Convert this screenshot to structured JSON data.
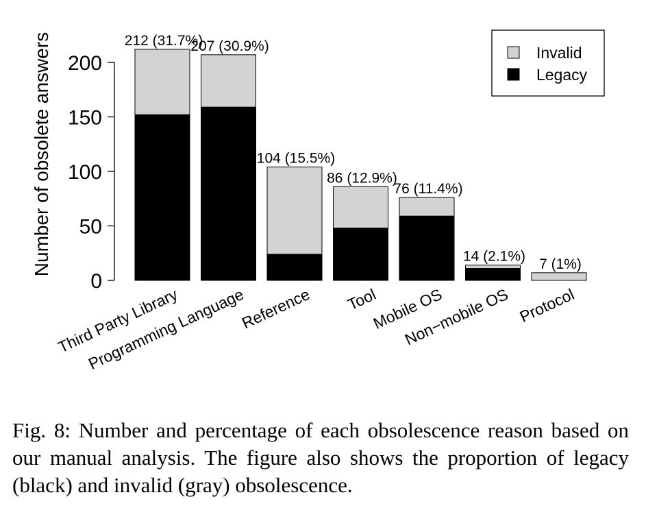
{
  "chart_data": {
    "type": "bar",
    "stacked": true,
    "categories": [
      "Third Party Library",
      "Programming Language",
      "Reference",
      "Tool",
      "Mobile OS",
      "Non−mobile OS",
      "Protocol"
    ],
    "series": [
      {
        "name": "Legacy",
        "color": "#000000",
        "values": [
          152,
          159,
          24,
          48,
          59,
          11,
          0
        ]
      },
      {
        "name": "Invalid",
        "color": "#d3d3d3",
        "values": [
          60,
          48,
          80,
          38,
          17,
          3,
          7
        ]
      }
    ],
    "totals": [
      212,
      207,
      104,
      86,
      76,
      14,
      7
    ],
    "data_labels": [
      "212 (31.7%)",
      "207 (30.9%)",
      "104 (15.5%)",
      "86 (12.9%)",
      "76 (11.4%)",
      "14 (2.1%)",
      "7 (1%)"
    ],
    "ylabel": "Number of obsolete answers",
    "ylim": [
      0,
      225
    ],
    "yticks": [
      "0",
      "50",
      "100",
      "150",
      "200"
    ],
    "ytick_values": [
      0,
      50,
      100,
      150,
      200
    ],
    "legend": {
      "placement": "top-right",
      "entries": [
        "Invalid",
        "Legacy"
      ]
    },
    "grid": false
  },
  "caption": "Fig. 8: Number and percentage of each obsolescence reason based on our manual analysis. The figure also shows the proportion of legacy (black) and invalid (gray) obsolescence."
}
